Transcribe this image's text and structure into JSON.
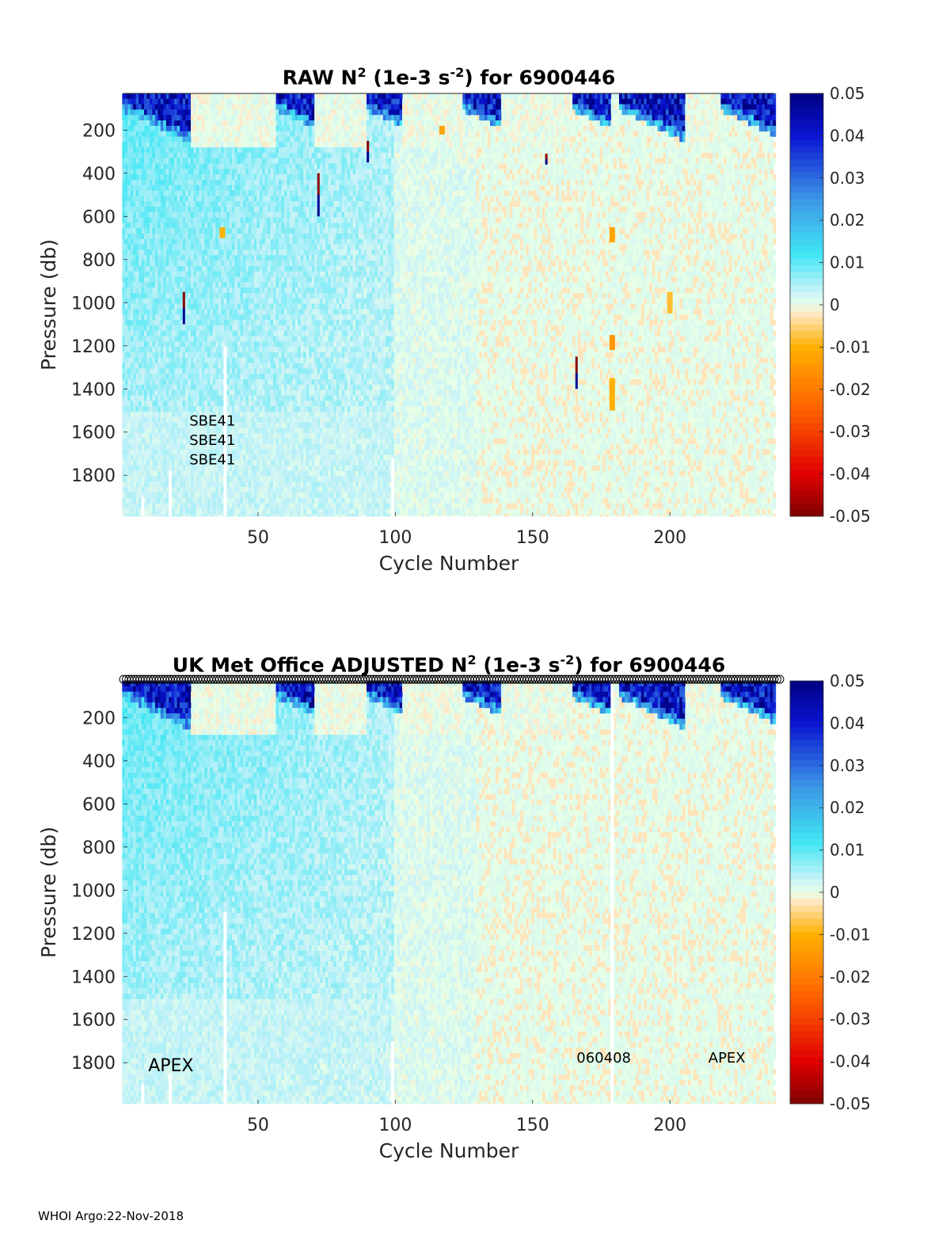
{
  "footer": "WHOI Argo:22-Nov-2018",
  "colormap": {
    "stops": [
      {
        "v": -0.05,
        "color": "#800000"
      },
      {
        "v": -0.04,
        "color": "#e00000"
      },
      {
        "v": -0.025,
        "color": "#ff6000"
      },
      {
        "v": -0.01,
        "color": "#ffb000"
      },
      {
        "v": -0.002,
        "color": "#ffe8c8"
      },
      {
        "v": 0.0,
        "color": "#e6ffe6"
      },
      {
        "v": 0.003,
        "color": "#c8f2f8"
      },
      {
        "v": 0.012,
        "color": "#40e6f4"
      },
      {
        "v": 0.025,
        "color": "#3c96e6"
      },
      {
        "v": 0.04,
        "color": "#0a14d2"
      },
      {
        "v": 0.05,
        "color": "#000080"
      }
    ]
  },
  "chart_data": [
    {
      "type": "heatmap",
      "title_main": "RAW N",
      "title_sup1": "2",
      "title_mid": " (1e-3 s",
      "title_sup2": "-2",
      "title_end": ") for 6900446",
      "xlabel": "Cycle Number",
      "ylabel": "Pressure (db)",
      "xlim": [
        1,
        238
      ],
      "ylim": [
        1990,
        30
      ],
      "xticks": [
        50,
        100,
        150,
        200
      ],
      "yticks": [
        200,
        400,
        600,
        800,
        1000,
        1200,
        1400,
        1600,
        1800
      ],
      "clim": [
        -0.05,
        0.05
      ],
      "cticks": [
        "0.05",
        "0.04",
        "0.03",
        "0.02",
        "0.01",
        "0",
        "-0.01",
        "-0.02",
        "-0.03",
        "-0.04",
        "-0.05"
      ],
      "cvalues": [
        0.05,
        0.04,
        0.03,
        0.02,
        0.01,
        0,
        -0.01,
        -0.02,
        -0.03,
        -0.04,
        -0.05
      ],
      "annotations": [
        {
          "text": "SBE41",
          "x": 25,
          "y": 1570
        },
        {
          "text": "SBE41",
          "x": 25,
          "y": 1660
        },
        {
          "text": "SBE41",
          "x": 25,
          "y": 1750
        }
      ],
      "spikes": [
        {
          "x": 23,
          "p0": 950,
          "p1": 1100
        },
        {
          "x": 72,
          "p0": 400,
          "p1": 600
        },
        {
          "x": 90,
          "p0": 250,
          "p1": 350
        },
        {
          "x": 166,
          "p0": 1250,
          "p1": 1400
        },
        {
          "x": 155,
          "p0": 310,
          "p1": 360
        }
      ],
      "warm_patches": [
        {
          "x0": 36,
          "x1": 38,
          "p0": 650,
          "p1": 700,
          "v": -0.01
        },
        {
          "x0": 178,
          "x1": 180,
          "p0": 650,
          "p1": 720,
          "v": -0.012
        },
        {
          "x0": 178,
          "x1": 180,
          "p0": 1150,
          "p1": 1220,
          "v": -0.015
        },
        {
          "x0": 178,
          "x1": 180,
          "p0": 1350,
          "p1": 1500,
          "v": -0.01
        },
        {
          "x0": 116,
          "x1": 118,
          "p0": 180,
          "p1": 220,
          "v": -0.012
        },
        {
          "x0": 199,
          "x1": 201,
          "p0": 950,
          "p1": 1050,
          "v": -0.008
        }
      ],
      "gaps": [
        {
          "x": 38,
          "p0": 1200,
          "p1": 1990
        },
        {
          "x": 99,
          "p0": 1720,
          "p1": 1990
        },
        {
          "x": 8,
          "p0": 1900,
          "p1": 1990
        },
        {
          "x": 18,
          "p0": 1780,
          "p1": 1990
        }
      ],
      "markers": false
    },
    {
      "type": "heatmap",
      "title_main": "UK Met Office  ADJUSTED N",
      "title_sup1": "2",
      "title_mid": " (1e-3 s",
      "title_sup2": "-2",
      "title_end": ") for 6900446",
      "xlabel": "Cycle Number",
      "ylabel": "Pressure (db)",
      "xlim": [
        1,
        238
      ],
      "ylim": [
        1990,
        30
      ],
      "xticks": [
        50,
        100,
        150,
        200
      ],
      "yticks": [
        200,
        400,
        600,
        800,
        1000,
        1200,
        1400,
        1600,
        1800
      ],
      "clim": [
        -0.05,
        0.05
      ],
      "cticks": [
        "0.05",
        "0.04",
        "0.03",
        "0.02",
        "0.01",
        "0",
        "-0.01",
        "-0.02",
        "-0.03",
        "-0.04",
        "-0.05"
      ],
      "cvalues": [
        0.05,
        0.04,
        0.03,
        0.02,
        0.01,
        0,
        -0.01,
        -0.02,
        -0.03,
        -0.04,
        -0.05
      ],
      "annotations": [
        {
          "text": "APEX",
          "x": 10,
          "y": 1840,
          "big": true
        },
        {
          "text": "060408",
          "x": 166,
          "y": 1800
        },
        {
          "text": "APEX",
          "x": 214,
          "y": 1800
        }
      ],
      "spikes": [],
      "warm_patches": [],
      "gaps": [
        {
          "x": 38,
          "p0": 1100,
          "p1": 1990
        },
        {
          "x": 99,
          "p0": 1700,
          "p1": 1990
        },
        {
          "x": 179,
          "p0": 30,
          "p1": 1990
        },
        {
          "x": 8,
          "p0": 1900,
          "p1": 1990
        },
        {
          "x": 18,
          "p0": 1850,
          "p1": 1990
        }
      ],
      "markers": true
    }
  ]
}
